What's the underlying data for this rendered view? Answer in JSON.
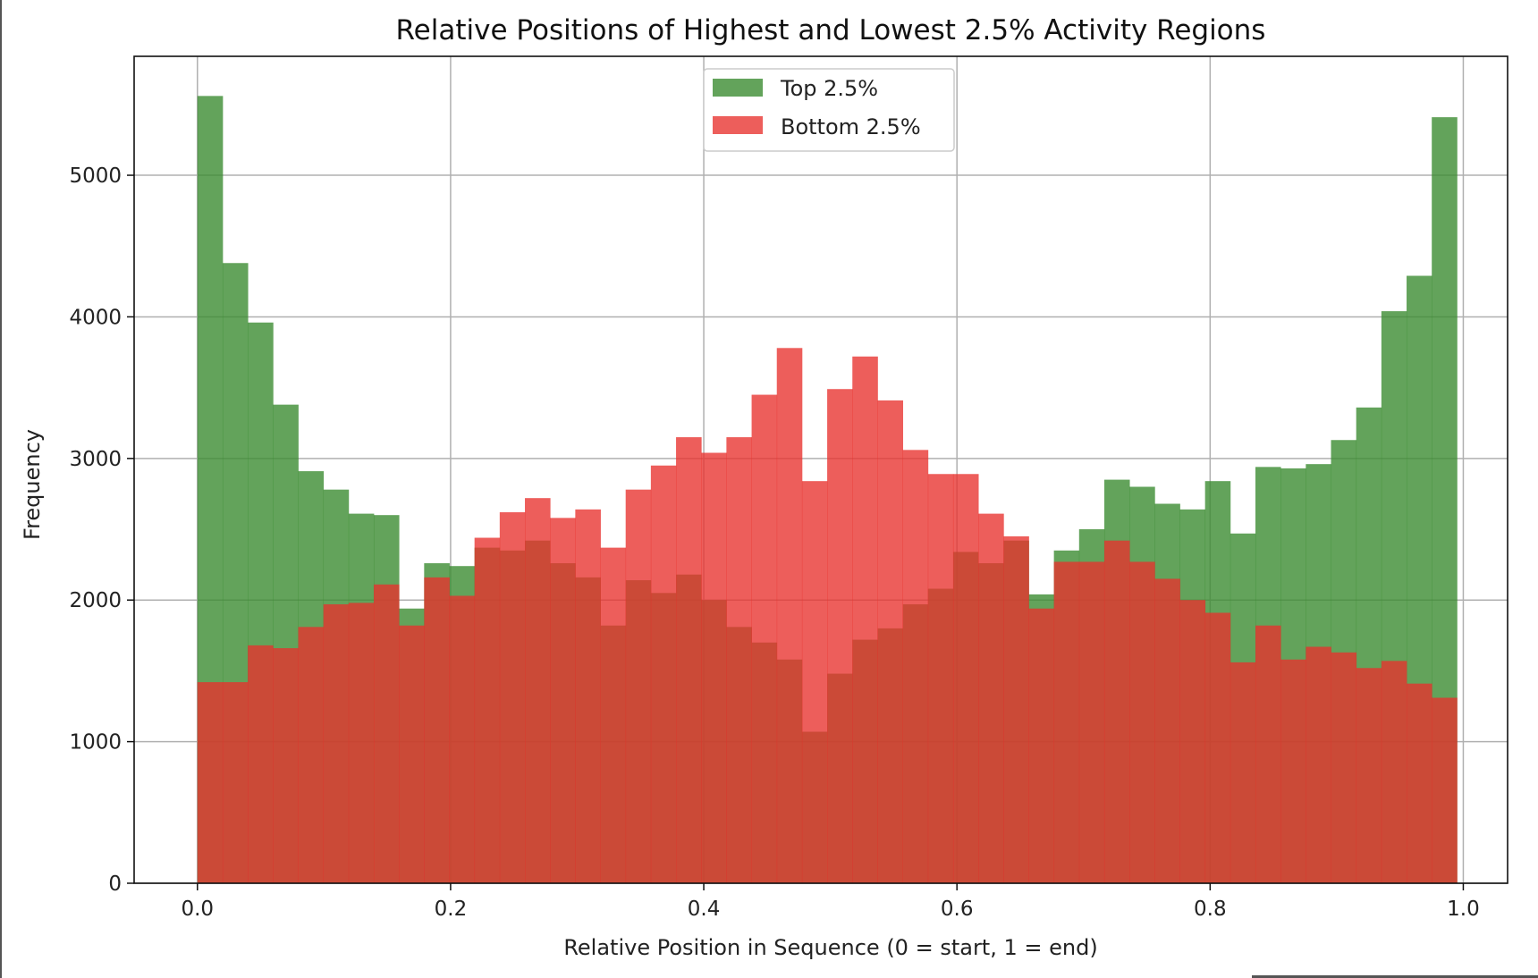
{
  "chart_data": {
    "type": "bar",
    "title": "Relative Positions of Highest and Lowest 2.5% Activity Regions",
    "xlabel": "Relative Position in Sequence (0 = start, 1 = end)",
    "ylabel": "Frequency",
    "xlim": [
      -0.05,
      1.035
    ],
    "ylim": [
      0,
      5840
    ],
    "x_ticks": [
      "0.0",
      "0.2",
      "0.4",
      "0.6",
      "0.8",
      "1.0"
    ],
    "x_tick_values": [
      0.0,
      0.2,
      0.4,
      0.6,
      0.8,
      1.0
    ],
    "y_ticks": [
      "0",
      "1000",
      "2000",
      "3000",
      "4000",
      "5000"
    ],
    "y_tick_values": [
      0,
      1000,
      2000,
      3000,
      4000,
      5000
    ],
    "grid": true,
    "legend_position": "top-center",
    "bin_range": [
      0,
      0.995
    ],
    "bins": 50,
    "series": [
      {
        "name": "Top 2.5%",
        "color": "#3c8c32",
        "values": [
          5560,
          4380,
          3960,
          3380,
          2910,
          2780,
          2610,
          2600,
          1940,
          2260,
          2240,
          2370,
          2350,
          2420,
          2260,
          2160,
          1820,
          2140,
          2050,
          2180,
          2000,
          1810,
          1700,
          1580,
          1070,
          1480,
          1720,
          1800,
          1970,
          2080,
          2340,
          2260,
          2420,
          2040,
          2350,
          2500,
          2850,
          2800,
          2680,
          2640,
          2840,
          2470,
          2940,
          2930,
          2960,
          3130,
          3360,
          4040,
          4290,
          5410
        ]
      },
      {
        "name": "Bottom 2.5%",
        "color": "#e8312d",
        "values": [
          1420,
          1420,
          1680,
          1660,
          1810,
          1970,
          1980,
          2110,
          1820,
          2160,
          2030,
          2440,
          2620,
          2720,
          2580,
          2640,
          2370,
          2780,
          2950,
          3150,
          3040,
          3150,
          3450,
          3780,
          2840,
          3490,
          3720,
          3410,
          3060,
          2890,
          2890,
          2610,
          2450,
          1940,
          2270,
          2270,
          2420,
          2270,
          2150,
          2000,
          1910,
          1560,
          1820,
          1580,
          1670,
          1630,
          1520,
          1570,
          1410,
          1310
        ]
      }
    ]
  }
}
